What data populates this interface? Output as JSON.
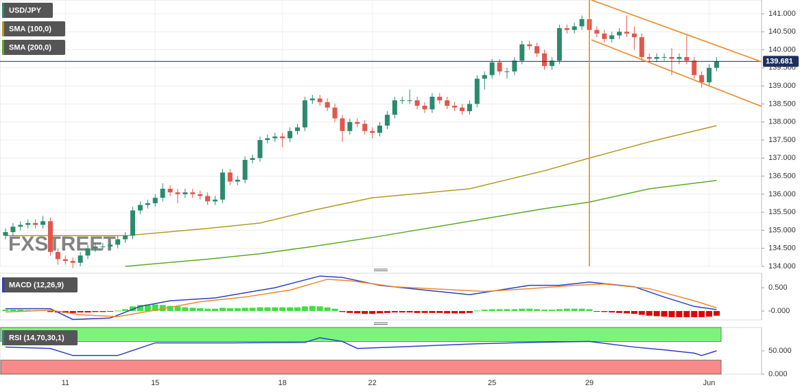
{
  "chart_data": [
    {
      "type": "candlestick",
      "title": "USD/JPY",
      "up_color": "#2a8a6e",
      "down_color": "#e0574c",
      "grid": true,
      "watermark": "FXSTREET",
      "last_price": 139.681,
      "categories": [
        null,
        null,
        null,
        null,
        null,
        null,
        null,
        null,
        "11",
        null,
        null,
        null,
        null,
        null,
        null,
        null,
        null,
        null,
        null,
        null,
        "15",
        null,
        null,
        null,
        null,
        null,
        null,
        null,
        null,
        null,
        null,
        null,
        null,
        null,
        null,
        null,
        null,
        "18",
        null,
        null,
        null,
        null,
        null,
        null,
        null,
        null,
        null,
        null,
        null,
        "22",
        null,
        null,
        null,
        null,
        null,
        null,
        null,
        null,
        null,
        null,
        null,
        null,
        null,
        null,
        null,
        "25",
        null,
        null,
        null,
        null,
        null,
        null,
        null,
        null,
        null,
        null,
        null,
        null,
        "29",
        null,
        null,
        null,
        null,
        null,
        null,
        null,
        null,
        null,
        null,
        null,
        null,
        null,
        null,
        null,
        "Jun",
        null
      ],
      "open": [
        134.85,
        134.95,
        135.1,
        135.15,
        135.2,
        135.15,
        135.25,
        134.4,
        134.2,
        134.15,
        134.1,
        134.3,
        134.5,
        134.55,
        134.55,
        134.6,
        134.75,
        134.85,
        135.55,
        135.7,
        135.75,
        135.9,
        136.15,
        136.05,
        136.0,
        136.05,
        136.0,
        135.95,
        135.8,
        135.85,
        136.6,
        136.35,
        136.4,
        136.95,
        137.0,
        137.5,
        137.55,
        137.6,
        137.55,
        137.75,
        137.85,
        138.6,
        138.65,
        138.55,
        138.4,
        138.1,
        137.75,
        138.0,
        137.95,
        137.75,
        137.7,
        137.9,
        138.2,
        138.6,
        138.6,
        138.6,
        138.45,
        138.35,
        138.7,
        138.6,
        138.45,
        138.4,
        138.3,
        138.5,
        139.2,
        139.3,
        139.65,
        139.4,
        139.4,
        139.7,
        140.15,
        140.1,
        139.9,
        139.55,
        139.7,
        140.6,
        140.55,
        140.65,
        140.85,
        140.55,
        140.45,
        140.3,
        140.4,
        140.5,
        140.45,
        140.35,
        139.8,
        139.75,
        139.8,
        139.8,
        139.75,
        139.8,
        139.7,
        139.3,
        139.1,
        139.5
      ],
      "high": [
        135.05,
        135.2,
        135.25,
        135.3,
        135.3,
        135.4,
        135.35,
        134.5,
        134.3,
        134.25,
        134.4,
        134.6,
        134.65,
        134.65,
        134.7,
        134.85,
        134.95,
        135.65,
        135.8,
        135.85,
        136.0,
        136.3,
        136.25,
        136.15,
        136.15,
        136.15,
        136.1,
        136.05,
        135.95,
        136.7,
        136.7,
        136.5,
        137.05,
        137.1,
        137.6,
        137.65,
        137.7,
        137.7,
        137.85,
        137.95,
        138.7,
        138.75,
        138.75,
        138.65,
        138.5,
        138.2,
        138.1,
        138.1,
        138.05,
        137.85,
        138.0,
        138.3,
        138.7,
        138.7,
        138.9,
        138.7,
        138.55,
        138.8,
        138.8,
        138.7,
        138.55,
        138.5,
        138.6,
        139.3,
        139.4,
        139.75,
        139.75,
        139.5,
        139.8,
        140.25,
        140.25,
        140.2,
        140.0,
        139.8,
        140.7,
        140.7,
        140.75,
        140.95,
        140.95,
        140.65,
        140.55,
        140.5,
        140.6,
        140.95,
        140.65,
        140.45,
        139.9,
        139.9,
        139.9,
        140.05,
        139.9,
        140.4,
        139.8,
        139.4,
        139.6,
        139.8
      ],
      "low": [
        134.75,
        134.85,
        135.0,
        135.05,
        135.05,
        135.05,
        134.3,
        134.05,
        134.05,
        133.95,
        134.0,
        134.2,
        134.4,
        134.45,
        134.45,
        134.5,
        134.65,
        134.75,
        135.45,
        135.6,
        135.65,
        135.8,
        135.95,
        135.75,
        135.9,
        135.9,
        135.85,
        135.7,
        135.7,
        135.75,
        136.25,
        136.25,
        136.3,
        136.85,
        136.9,
        137.4,
        137.45,
        137.3,
        137.45,
        137.65,
        137.75,
        138.5,
        138.45,
        138.3,
        138.0,
        137.45,
        137.65,
        137.85,
        137.65,
        137.55,
        137.6,
        137.8,
        138.1,
        138.5,
        138.5,
        138.35,
        138.25,
        138.25,
        138.5,
        138.35,
        138.3,
        138.2,
        138.2,
        138.4,
        138.9,
        139.2,
        139.3,
        139.2,
        139.3,
        139.6,
        140.0,
        139.8,
        139.45,
        139.45,
        139.6,
        140.45,
        140.45,
        140.55,
        140.45,
        140.35,
        140.2,
        140.2,
        140.3,
        140.35,
        140.0,
        139.7,
        139.65,
        139.65,
        139.7,
        139.3,
        139.6,
        139.6,
        139.2,
        138.95,
        139.0,
        139.4
      ],
      "close": [
        134.95,
        135.1,
        135.15,
        135.2,
        135.15,
        135.25,
        134.4,
        134.2,
        134.15,
        134.1,
        134.3,
        134.5,
        134.55,
        134.55,
        134.6,
        134.75,
        134.85,
        135.55,
        135.7,
        135.75,
        135.9,
        136.15,
        136.05,
        136.0,
        136.05,
        136.0,
        135.95,
        135.8,
        135.85,
        136.6,
        136.35,
        136.4,
        136.95,
        137.0,
        137.5,
        137.55,
        137.6,
        137.55,
        137.75,
        137.85,
        138.6,
        138.65,
        138.55,
        138.4,
        138.1,
        137.75,
        138.0,
        137.95,
        137.75,
        137.7,
        137.9,
        138.2,
        138.6,
        138.6,
        138.6,
        138.45,
        138.35,
        138.7,
        138.6,
        138.45,
        138.4,
        138.3,
        138.5,
        139.2,
        139.3,
        139.65,
        139.4,
        139.4,
        139.7,
        140.15,
        140.1,
        139.9,
        139.55,
        139.7,
        140.6,
        140.55,
        140.65,
        140.85,
        140.55,
        140.45,
        140.3,
        140.4,
        140.5,
        140.45,
        140.35,
        139.8,
        139.75,
        139.8,
        139.8,
        139.75,
        139.8,
        139.7,
        139.3,
        139.1,
        139.5,
        139.68
      ],
      "overlays": [
        {
          "name": "SMA (100,0)",
          "color": "#b39b1c",
          "x": [
            0,
            16,
            27,
            34,
            41,
            49,
            62,
            72,
            78,
            86,
            95
          ],
          "values": [
            134.85,
            134.85,
            135.05,
            135.2,
            135.55,
            135.9,
            136.15,
            136.65,
            137.0,
            137.45,
            137.9
          ]
        },
        {
          "name": "SMA (200,0)",
          "color": "#5aab1e",
          "x": [
            16,
            27,
            34,
            41,
            49,
            62,
            72,
            78,
            86,
            95
          ],
          "values": [
            134.0,
            134.2,
            134.35,
            134.55,
            134.8,
            135.25,
            135.6,
            135.78,
            136.15,
            136.38
          ]
        }
      ],
      "ylim": [
        134,
        141.38
      ],
      "yticks": [
        {
          "value": 134,
          "label": "134.000"
        },
        {
          "value": 134.5,
          "label": "134.500"
        },
        {
          "value": 135,
          "label": "135.000"
        },
        {
          "value": 135.5,
          "label": "135.500"
        },
        {
          "value": 136,
          "label": "136.000"
        },
        {
          "value": 136.5,
          "label": "136.500"
        },
        {
          "value": 137,
          "label": "137.000"
        },
        {
          "value": 137.5,
          "label": "137.500"
        },
        {
          "value": 138,
          "label": "138.000"
        },
        {
          "value": 138.5,
          "label": "138.500"
        },
        {
          "value": 139,
          "label": "139.000"
        },
        {
          "value": 139.5,
          "label": "139.500"
        },
        {
          "value": 140,
          "label": "140.000"
        },
        {
          "value": 140.5,
          "label": "140.500"
        },
        {
          "value": 141,
          "label": "141.000"
        }
      ]
    },
    {
      "type": "macd",
      "title": "MACD (12,26,9)",
      "up_color": "#3fe03f",
      "down_color": "#e00000",
      "histogram": [
        0.03,
        0.03,
        0.03,
        0.02,
        0.02,
        0.02,
        -0.02,
        -0.03,
        -0.04,
        -0.04,
        -0.03,
        -0.03,
        -0.02,
        -0.02,
        -0.01,
        0.01,
        0.04,
        0.1,
        0.13,
        0.14,
        0.14,
        0.13,
        0.11,
        0.1,
        0.08,
        0.07,
        0.06,
        0.05,
        0.05,
        0.07,
        0.06,
        0.06,
        0.07,
        0.07,
        0.08,
        0.08,
        0.08,
        0.08,
        0.08,
        0.08,
        0.1,
        0.11,
        0.1,
        0.08,
        0.05,
        -0.02,
        -0.04,
        -0.05,
        -0.06,
        -0.06,
        -0.05,
        -0.04,
        -0.03,
        -0.03,
        -0.03,
        -0.04,
        -0.04,
        -0.04,
        -0.04,
        -0.05,
        -0.05,
        -0.05,
        -0.04,
        0.01,
        0.03,
        0.04,
        0.04,
        0.04,
        0.04,
        0.05,
        0.05,
        0.04,
        0.03,
        0.03,
        0.04,
        0.05,
        0.05,
        0.05,
        0.04,
        -0.01,
        -0.02,
        -0.03,
        -0.04,
        -0.05,
        -0.06,
        -0.08,
        -0.1,
        -0.11,
        -0.12,
        -0.13,
        -0.13,
        -0.13,
        -0.13,
        -0.13,
        -0.12,
        -0.1
      ],
      "series": [
        {
          "color": "#2b3fc4",
          "x": [
            0,
            6,
            9,
            14,
            18,
            22,
            28,
            36,
            42,
            45,
            50,
            56,
            62,
            66,
            70,
            74,
            78,
            84,
            88,
            92,
            95
          ],
          "values": [
            0.05,
            0.05,
            -0.18,
            -0.15,
            0.1,
            0.22,
            0.28,
            0.5,
            0.75,
            0.72,
            0.55,
            0.45,
            0.35,
            0.45,
            0.55,
            0.55,
            0.62,
            0.52,
            0.3,
            0.1,
            0.03
          ]
        },
        {
          "color": "#f0862a",
          "x": [
            0,
            6,
            10,
            15,
            20,
            26,
            32,
            38,
            43,
            46,
            52,
            58,
            64,
            70,
            76,
            80,
            86,
            92,
            95
          ],
          "values": [
            -0.02,
            0.02,
            -0.08,
            -0.12,
            0.02,
            0.2,
            0.3,
            0.45,
            0.68,
            0.65,
            0.52,
            0.47,
            0.42,
            0.48,
            0.55,
            0.58,
            0.48,
            0.22,
            0.07
          ]
        }
      ],
      "ylim": [
        -0.19,
        0.81
      ],
      "yticks": [
        {
          "value": 0.5,
          "label": "0.500"
        },
        {
          "value": 0,
          "label": "-0.000"
        }
      ]
    },
    {
      "type": "rsi",
      "title": "RSI (14,70,30,1)",
      "bands": [
        {
          "range": [
            70,
            100
          ],
          "color": "#7cf47c"
        },
        {
          "range": [
            0,
            30
          ],
          "color": "#f88a8a"
        }
      ],
      "series": [
        {
          "color": "#2b3fc4",
          "x": [
            0,
            6,
            9,
            15,
            20,
            30,
            40,
            42,
            45,
            47,
            55,
            63,
            70,
            78,
            84,
            88,
            92,
            93,
            95
          ],
          "values": [
            58,
            55,
            40,
            40,
            67,
            67,
            68,
            78,
            70,
            55,
            60,
            65,
            68,
            70,
            58,
            52,
            45,
            40,
            50
          ]
        }
      ],
      "ylim": [
        0,
        100
      ],
      "yticks": [
        {
          "value": 50,
          "label": "50.000"
        },
        {
          "value": 0,
          "label": "0.000"
        }
      ]
    }
  ]
}
